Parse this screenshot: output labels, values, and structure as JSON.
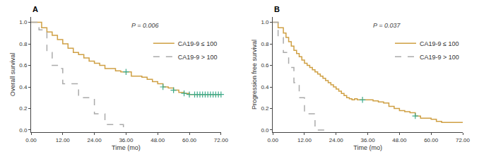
{
  "chart_data": [
    {
      "type": "line",
      "title": "A",
      "ylabel": "Overall survival",
      "xlabel": "Time (mo)",
      "annotations": [
        "P = 0.006"
      ],
      "xlim": [
        0,
        72
      ],
      "ylim": [
        -0.02,
        1.05
      ],
      "xticks": [
        {
          "value": 0,
          "label": "0.00"
        },
        {
          "value": 12,
          "label": "12.00"
        },
        {
          "value": 24,
          "label": "24.00"
        },
        {
          "value": 36,
          "label": "36.00"
        },
        {
          "value": 48,
          "label": "48.00"
        },
        {
          "value": 60,
          "label": "60.00"
        },
        {
          "value": 72,
          "label": "72.00"
        }
      ],
      "yticks": [
        {
          "value": 0.0,
          "label": "0.0"
        },
        {
          "value": 0.2,
          "label": "0.2"
        },
        {
          "value": 0.4,
          "label": "0.4"
        },
        {
          "value": 0.6,
          "label": "0.6"
        },
        {
          "value": 0.8,
          "label": "0.8"
        },
        {
          "value": 1.0,
          "label": "1.0"
        }
      ],
      "grid": false,
      "legend": "upper right",
      "series": [
        {
          "name": "CA19-9 ≤ 100",
          "type": "line",
          "color": "#CFA044",
          "line_style": "solid",
          "x": [
            0,
            4,
            6,
            8,
            10,
            12,
            14,
            16,
            18,
            20,
            22,
            24,
            26,
            28,
            32,
            34,
            36,
            38,
            42,
            44,
            46,
            48,
            50,
            52,
            54,
            56,
            58,
            60,
            62,
            63,
            64,
            65,
            66,
            67,
            68,
            69,
            70,
            71,
            72
          ],
          "values": [
            1.0,
            0.95,
            0.91,
            0.88,
            0.84,
            0.8,
            0.76,
            0.72,
            0.7,
            0.67,
            0.64,
            0.62,
            0.6,
            0.57,
            0.55,
            0.54,
            0.54,
            0.5,
            0.49,
            0.47,
            0.45,
            0.43,
            0.4,
            0.39,
            0.37,
            0.35,
            0.34,
            0.33,
            0.33,
            0.33,
            0.33,
            0.33,
            0.33,
            0.33,
            0.33,
            0.33,
            0.33,
            0.33,
            0.33
          ]
        },
        {
          "name": "CA19-9 > 100",
          "type": "line",
          "color": "#AAAAAA",
          "line_style": "dashed",
          "x": [
            0,
            3,
            6,
            8,
            10,
            12,
            14,
            18,
            20,
            24,
            26,
            28,
            30,
            32,
            34,
            35,
            36
          ],
          "values": [
            1.0,
            0.93,
            0.72,
            0.6,
            0.57,
            0.43,
            0.43,
            0.3,
            0.3,
            0.15,
            0.15,
            0.05,
            0.05,
            0.05,
            0.05,
            0.0,
            0.0
          ]
        },
        {
          "type": "scatter",
          "marker": "cross",
          "color": "#3DAA8A",
          "x": [
            36,
            50,
            54,
            58,
            60,
            62,
            63,
            64,
            65,
            66,
            67,
            68,
            69,
            70,
            71,
            72
          ],
          "values": [
            0.54,
            0.4,
            0.37,
            0.34,
            0.33,
            0.33,
            0.33,
            0.33,
            0.33,
            0.33,
            0.33,
            0.33,
            0.33,
            0.33,
            0.33,
            0.33
          ]
        }
      ]
    },
    {
      "type": "line",
      "title": "B",
      "ylabel": "Progression free survival",
      "xlabel": "Time (mo)",
      "annotations": [
        "P = 0.037"
      ],
      "xlim": [
        0,
        72
      ],
      "ylim": [
        -0.02,
        1.05
      ],
      "xticks": [
        {
          "value": 0,
          "label": "0.00"
        },
        {
          "value": 12,
          "label": "12.00"
        },
        {
          "value": 24,
          "label": "24.00"
        },
        {
          "value": 36,
          "label": "36.00"
        },
        {
          "value": 48,
          "label": "48.00"
        },
        {
          "value": 60,
          "label": "60.00"
        },
        {
          "value": 72,
          "label": "72.00"
        }
      ],
      "yticks": [
        {
          "value": 0.0,
          "label": "0.0"
        },
        {
          "value": 0.2,
          "label": "0.2"
        },
        {
          "value": 0.4,
          "label": "0.4"
        },
        {
          "value": 0.6,
          "label": "0.6"
        },
        {
          "value": 0.8,
          "label": "0.8"
        },
        {
          "value": 1.0,
          "label": "1.0"
        }
      ],
      "grid": false,
      "legend": "upper right",
      "series": [
        {
          "name": "CA19-9 ≤ 100",
          "type": "line",
          "color": "#CFA044",
          "line_style": "solid",
          "x": [
            0,
            2,
            4,
            5,
            6,
            7,
            8,
            9,
            10,
            11,
            12,
            13,
            14,
            15,
            16,
            17,
            18,
            19,
            20,
            21,
            22,
            23,
            24,
            25,
            26,
            27,
            28,
            29,
            30,
            31,
            32,
            33,
            34,
            36,
            38,
            40,
            42,
            44,
            46,
            48,
            50,
            52,
            54,
            56,
            60,
            62,
            64,
            68,
            70,
            72
          ],
          "values": [
            1.0,
            0.95,
            0.9,
            0.86,
            0.82,
            0.78,
            0.74,
            0.71,
            0.68,
            0.65,
            0.62,
            0.6,
            0.58,
            0.56,
            0.54,
            0.52,
            0.5,
            0.48,
            0.46,
            0.44,
            0.42,
            0.4,
            0.38,
            0.36,
            0.34,
            0.32,
            0.3,
            0.29,
            0.28,
            0.29,
            0.28,
            0.28,
            0.28,
            0.28,
            0.27,
            0.26,
            0.25,
            0.22,
            0.2,
            0.18,
            0.17,
            0.16,
            0.13,
            0.11,
            0.1,
            0.08,
            0.07,
            0.07,
            0.07,
            0.07
          ]
        },
        {
          "name": "CA19-9 > 100",
          "type": "line",
          "color": "#AAAAAA",
          "line_style": "dashed",
          "x": [
            0,
            2,
            4,
            6,
            8,
            10,
            12,
            14,
            16,
            18,
            20
          ],
          "values": [
            1.0,
            0.86,
            0.72,
            0.58,
            0.44,
            0.3,
            0.15,
            0.15,
            0.0,
            0.0,
            0.0
          ]
        },
        {
          "type": "scatter",
          "marker": "cross",
          "color": "#3DAA8A",
          "x": [
            34,
            54
          ],
          "values": [
            0.28,
            0.13
          ]
        }
      ]
    }
  ]
}
